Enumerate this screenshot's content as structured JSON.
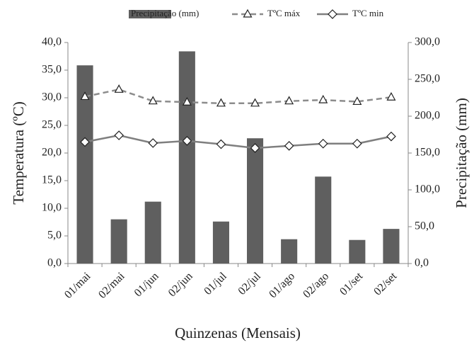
{
  "chart_data": {
    "type": "bar-line",
    "categories": [
      "01/mai",
      "02/mai",
      "01/jun",
      "02/jun",
      "01/jul",
      "02/jul",
      "01/ago",
      "02/ago",
      "01/set",
      "02/set"
    ],
    "series": [
      {
        "name": "Precipitação (mm)",
        "kind": "bar",
        "axis": "y2",
        "color": "#5f5f5f",
        "values": [
          269,
          60,
          84,
          288,
          57,
          170,
          33,
          118,
          32,
          47
        ]
      },
      {
        "name": "TºC máx",
        "kind": "line",
        "marker": "triangle",
        "dash": true,
        "color": "#8c8c8c",
        "values": [
          30.2,
          31.5,
          29.4,
          29.2,
          29.0,
          29.0,
          29.4,
          29.6,
          29.3,
          30.1
        ]
      },
      {
        "name": "TºC min",
        "kind": "line",
        "marker": "diamond",
        "dash": false,
        "color": "#7f7f7f",
        "values": [
          22.0,
          23.2,
          21.8,
          22.2,
          21.6,
          20.9,
          21.3,
          21.7,
          21.7,
          23.0
        ]
      }
    ],
    "y_label": "Temperatura (ºC)",
    "y2_label": "Precipitação (mm)",
    "x_label": "Quinzenas (Mensais)",
    "ylim": [
      0,
      40
    ],
    "yticks": [
      {
        "value": 0,
        "label": "0,0"
      },
      {
        "value": 5,
        "label": "5,0"
      },
      {
        "value": 10,
        "label": "10,0"
      },
      {
        "value": 15,
        "label": "15,0"
      },
      {
        "value": 20,
        "label": "20,0"
      },
      {
        "value": 25,
        "label": "25,0"
      },
      {
        "value": 30,
        "label": "30,0"
      },
      {
        "value": 35,
        "label": "35,0"
      },
      {
        "value": 40,
        "label": "40,0"
      }
    ],
    "y2lim": [
      0,
      300
    ],
    "y2ticks": [
      {
        "value": 0,
        "label": "0,0"
      },
      {
        "value": 50,
        "label": "50,0"
      },
      {
        "value": 100,
        "label": "100,0"
      },
      {
        "value": 150,
        "label": "150,0"
      },
      {
        "value": 200,
        "label": "200,0"
      },
      {
        "value": 250,
        "label": "250,0"
      },
      {
        "value": 300,
        "label": "300,0"
      }
    ],
    "legend": "top"
  }
}
